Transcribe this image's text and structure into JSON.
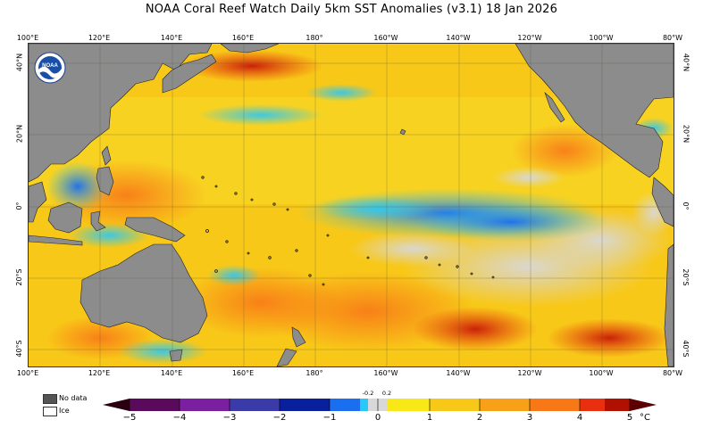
{
  "title": "NOAA Coral Reef Watch Daily 5km SST Anomalies  (v3.1)   18 Jan 2026",
  "logo_text": "NOAA",
  "longitude_labels": [
    "100°E",
    "120°E",
    "140°E",
    "160°E",
    "180°",
    "160°W",
    "140°W",
    "120°W",
    "100°W",
    "80°W"
  ],
  "latitude_labels": [
    "40°N",
    "20°N",
    "0°",
    "20°S",
    "40°S"
  ],
  "legend": {
    "no_data": "No data",
    "ice": "Ice",
    "no_data_color": "#555555",
    "ice_color": "#ffffff"
  },
  "colorbar": {
    "ticks": [
      "−5",
      "−4",
      "−3",
      "−2",
      "−1",
      "0",
      "1",
      "2",
      "3",
      "4",
      "5"
    ],
    "small_ticks": [
      "-0.2",
      "0.2"
    ],
    "unit": "°C",
    "colors": [
      "#2a0010",
      "#5a0a5a",
      "#7a1fa0",
      "#3a3aa8",
      "#0a1f9c",
      "#1a3fd8",
      "#1a6ef0",
      "#1a9ef8",
      "#28c8f8",
      "#d8d8d8",
      "#f8e818",
      "#f8c818",
      "#f8a018",
      "#f87818",
      "#e83010",
      "#b01000",
      "#5a0000"
    ]
  },
  "land_color": "#8c8c8c"
}
